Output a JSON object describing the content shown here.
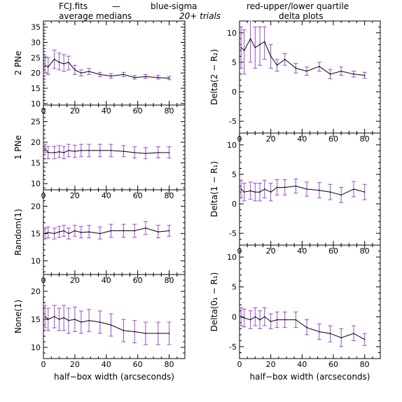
{
  "header": {
    "file_label": "FCJ.fits",
    "dash": "—",
    "blue_label": "blue-sigma",
    "red_label": "red-upper/lower quartile",
    "trials_label": "20+ trials",
    "left_title": "average medians",
    "right_title": "delta plots",
    "blue_color": "#5050e6",
    "red_color": "#e64a4a"
  },
  "colors": {
    "line": "#000000",
    "errorbar": "#9a4cc8"
  },
  "chart_data": [
    {
      "type": "line",
      "column": "left",
      "ylabel": "2 PNe",
      "xlabel": "",
      "xlim": [
        0,
        90
      ],
      "ylim": [
        9.5,
        37
      ],
      "xticks": [
        0,
        20,
        40,
        60,
        80
      ],
      "yticks": [
        10,
        15,
        20,
        25,
        30,
        35
      ],
      "x": [
        1,
        3,
        7,
        10,
        13,
        16,
        20,
        24,
        29,
        36,
        43,
        51,
        58,
        65,
        73,
        80
      ],
      "y": [
        22.5,
        22.0,
        24.5,
        23.5,
        23.0,
        23.5,
        21.0,
        20.0,
        20.5,
        19.5,
        19.0,
        19.5,
        18.5,
        18.8,
        18.5,
        18.3
      ],
      "err_low": [
        20.0,
        19.5,
        21.5,
        21.0,
        20.5,
        21.0,
        19.5,
        19.0,
        19.5,
        18.8,
        18.3,
        18.8,
        18.0,
        18.2,
        18.0,
        17.8
      ],
      "err_high": [
        25.5,
        25.0,
        27.5,
        26.5,
        26.0,
        25.5,
        22.5,
        21.0,
        21.5,
        20.2,
        19.8,
        20.2,
        19.2,
        19.5,
        19.2,
        18.9
      ]
    },
    {
      "type": "line",
      "column": "right",
      "ylabel": "Delta(2 − R₂)",
      "xlabel": "",
      "xlim": [
        0,
        90
      ],
      "ylim": [
        -7,
        12
      ],
      "xticks": [
        0,
        20,
        40,
        60,
        80
      ],
      "yticks": [
        -5,
        0,
        5,
        10
      ],
      "x": [
        1,
        3,
        7,
        10,
        13,
        16,
        20,
        24,
        29,
        36,
        43,
        51,
        58,
        65,
        73,
        80
      ],
      "y": [
        7.5,
        7.0,
        9.0,
        7.5,
        8.0,
        8.5,
        6.0,
        4.5,
        5.5,
        4.0,
        3.5,
        4.3,
        3.0,
        3.5,
        3.0,
        2.8
      ],
      "err_low": [
        4.0,
        3.0,
        5.0,
        4.0,
        4.5,
        5.5,
        4.0,
        3.5,
        4.5,
        3.2,
        2.8,
        3.5,
        2.2,
        2.8,
        2.5,
        2.3
      ],
      "err_high": [
        11.0,
        10.5,
        12.0,
        11.0,
        11.0,
        11.0,
        8.0,
        5.5,
        6.5,
        4.8,
        4.2,
        5.0,
        3.8,
        4.2,
        3.5,
        3.3
      ]
    },
    {
      "type": "line",
      "column": "left",
      "ylabel": "1 PNe",
      "xlabel": "",
      "xlim": [
        0,
        90
      ],
      "ylim": [
        8.5,
        29
      ],
      "xticks": [
        0,
        20,
        40,
        60,
        80
      ],
      "yticks": [
        10,
        15,
        20,
        25
      ],
      "x": [
        1,
        3,
        7,
        10,
        13,
        16,
        20,
        24,
        29,
        36,
        43,
        51,
        58,
        65,
        73,
        80
      ],
      "y": [
        18.5,
        17.5,
        17.5,
        17.7,
        17.5,
        18.0,
        17.8,
        18.0,
        18.0,
        18.0,
        18.0,
        17.8,
        17.5,
        17.3,
        17.5,
        17.5
      ],
      "err_low": [
        17.5,
        16.0,
        16.0,
        16.3,
        16.0,
        16.5,
        16.3,
        16.5,
        16.5,
        16.5,
        16.5,
        16.5,
        16.2,
        16.0,
        16.2,
        16.2
      ],
      "err_high": [
        19.5,
        19.0,
        19.0,
        19.2,
        19.0,
        19.5,
        19.3,
        19.5,
        19.5,
        19.5,
        19.5,
        19.2,
        18.9,
        18.7,
        18.9,
        18.9
      ]
    },
    {
      "type": "line",
      "column": "right",
      "ylabel": "Delta(1 − R₁)",
      "xlabel": "",
      "xlim": [
        0,
        90
      ],
      "ylim": [
        -7,
        12
      ],
      "xticks": [
        0,
        20,
        40,
        60,
        80
      ],
      "yticks": [
        -5,
        0,
        5,
        10
      ],
      "x": [
        1,
        3,
        7,
        10,
        13,
        16,
        20,
        24,
        29,
        36,
        43,
        51,
        58,
        65,
        73,
        80
      ],
      "y": [
        2.5,
        2.0,
        2.2,
        2.0,
        2.0,
        2.5,
        2.0,
        2.8,
        2.8,
        3.0,
        2.5,
        2.3,
        2.0,
        1.5,
        2.5,
        2.0
      ],
      "err_low": [
        1.0,
        0.5,
        0.8,
        0.5,
        0.5,
        1.0,
        0.5,
        1.5,
        1.5,
        1.8,
        1.3,
        1.0,
        0.7,
        0.2,
        1.2,
        0.7
      ],
      "err_high": [
        4.0,
        3.5,
        3.7,
        3.5,
        3.5,
        4.0,
        3.5,
        4.1,
        4.1,
        4.2,
        3.7,
        3.6,
        3.3,
        2.8,
        3.8,
        3.3
      ]
    },
    {
      "type": "line",
      "column": "left",
      "ylabel": "Random(1)",
      "xlabel": "",
      "xlim": [
        0,
        90
      ],
      "ylim": [
        7.5,
        23
      ],
      "xticks": [
        0,
        20,
        40,
        60,
        80
      ],
      "yticks": [
        10,
        15,
        20
      ],
      "x": [
        1,
        3,
        7,
        10,
        13,
        16,
        20,
        24,
        29,
        36,
        43,
        51,
        58,
        65,
        73,
        80
      ],
      "y": [
        15.0,
        15.2,
        15.0,
        15.3,
        15.5,
        15.0,
        15.5,
        15.2,
        15.3,
        15.0,
        15.5,
        15.5,
        15.5,
        16.0,
        15.3,
        15.5
      ],
      "err_low": [
        14.0,
        14.2,
        14.0,
        14.3,
        14.5,
        14.0,
        14.5,
        14.2,
        14.2,
        14.0,
        14.3,
        14.3,
        14.3,
        14.8,
        14.2,
        14.5
      ],
      "err_high": [
        16.0,
        16.2,
        16.0,
        16.3,
        16.5,
        16.0,
        16.5,
        16.3,
        16.5,
        16.2,
        16.7,
        16.7,
        16.7,
        17.2,
        16.5,
        16.5
      ]
    },
    {
      "type": "line",
      "column": "right",
      "ylabel": "Delta(0₁ − R₁)",
      "xlabel": "half−box width (arcseconds)",
      "xlim": [
        0,
        90
      ],
      "ylim": [
        -7,
        12
      ],
      "xticks": [
        0,
        20,
        40,
        60,
        80
      ],
      "yticks": [
        -5,
        0,
        5,
        10
      ],
      "x": [
        1,
        3,
        7,
        10,
        13,
        16,
        20,
        24,
        29,
        36,
        43,
        51,
        58,
        65,
        73,
        80
      ],
      "y": [
        0.0,
        -0.2,
        -0.5,
        0.0,
        -0.5,
        0.0,
        -0.8,
        -0.5,
        -0.5,
        -0.5,
        -1.8,
        -2.5,
        -2.8,
        -3.5,
        -2.8,
        -3.8
      ],
      "err_low": [
        -1.5,
        -1.7,
        -2.0,
        -1.5,
        -2.0,
        -1.5,
        -2.0,
        -1.8,
        -1.8,
        -1.8,
        -3.0,
        -3.8,
        -4.2,
        -5.0,
        -4.0,
        -4.8
      ],
      "err_high": [
        1.5,
        1.3,
        1.0,
        1.5,
        1.0,
        1.5,
        0.5,
        0.8,
        0.8,
        0.8,
        -0.5,
        -1.2,
        -1.5,
        -2.0,
        -1.5,
        -2.8
      ]
    },
    {
      "type": "line",
      "column": "left",
      "ylabel": "None(1)",
      "xlabel": "half−box width (arcseconds)",
      "xlim": [
        0,
        90
      ],
      "ylim": [
        8,
        23
      ],
      "xticks": [
        0,
        20,
        40,
        60,
        80
      ],
      "yticks": [
        10,
        15,
        20
      ],
      "x": [
        1,
        3,
        7,
        10,
        13,
        16,
        20,
        24,
        29,
        36,
        43,
        51,
        58,
        65,
        73,
        80
      ],
      "y": [
        15.5,
        15.0,
        15.5,
        15.0,
        15.3,
        14.8,
        15.0,
        14.5,
        14.8,
        14.5,
        14.0,
        13.0,
        12.8,
        12.5,
        12.5,
        12.5
      ],
      "err_low": [
        13.5,
        13.0,
        13.5,
        13.0,
        13.0,
        12.5,
        12.8,
        12.5,
        12.8,
        12.5,
        12.0,
        11.0,
        10.8,
        10.5,
        10.5,
        10.5
      ],
      "err_high": [
        17.5,
        17.0,
        17.5,
        17.0,
        17.5,
        17.0,
        17.2,
        16.5,
        16.8,
        16.5,
        16.0,
        15.0,
        14.8,
        14.5,
        14.5,
        14.5
      ]
    }
  ]
}
